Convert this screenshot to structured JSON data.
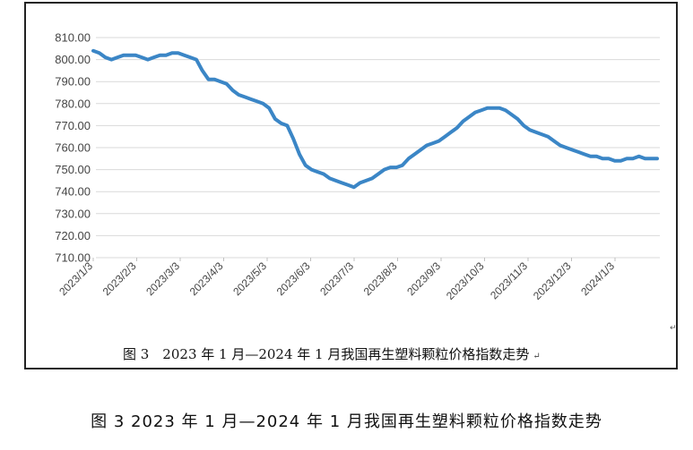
{
  "chart_data": {
    "type": "line",
    "title": "",
    "xlabel": "",
    "ylabel": "",
    "ylim": [
      710,
      810
    ],
    "y_ticks": [
      "810.00",
      "800.00",
      "790.00",
      "780.00",
      "770.00",
      "760.00",
      "750.00",
      "740.00",
      "730.00",
      "720.00",
      "710.00"
    ],
    "x_tick_labels": [
      "2023/1/3",
      "2023/2/3",
      "2023/3/3",
      "2023/4/3",
      "2023/5/3",
      "2023/6/3",
      "2023/7/3",
      "2023/8/3",
      "2023/9/3",
      "2023/10/3",
      "2023/11/3",
      "2023/12/3",
      "2024/1/3"
    ],
    "grid": true,
    "legend": "none",
    "line_color": "#3b86c6",
    "series": [
      {
        "values": [
          804,
          803,
          801,
          800,
          801,
          802,
          802,
          802,
          801,
          800,
          801,
          802,
          802,
          803,
          803,
          802,
          801,
          800,
          795,
          791,
          791,
          790,
          789,
          786,
          784,
          783,
          782,
          781,
          780,
          778,
          773,
          771,
          770,
          764,
          757,
          752,
          750,
          749,
          748,
          746,
          745,
          744,
          743,
          742,
          744,
          745,
          746,
          748,
          750,
          751,
          751,
          752,
          755,
          757,
          759,
          761,
          762,
          763,
          765,
          767,
          769,
          772,
          774,
          776,
          777,
          778,
          778,
          778,
          777,
          775,
          773,
          770,
          768,
          767,
          766,
          765,
          763,
          761,
          760,
          759,
          758,
          757,
          756,
          756,
          755,
          755,
          754,
          754,
          755,
          755,
          756,
          755,
          755,
          755
        ]
      }
    ]
  },
  "captions": {
    "inner": "图 3　2023 年 1 月—2024 年 1 月我国再生塑料颗粒价格指数走势",
    "inner_mark": "↵",
    "corner_mark": "↵",
    "outer": "图 3  2023 年 1 月—2024 年 1 月我国再生塑料颗粒价格指数走势"
  }
}
